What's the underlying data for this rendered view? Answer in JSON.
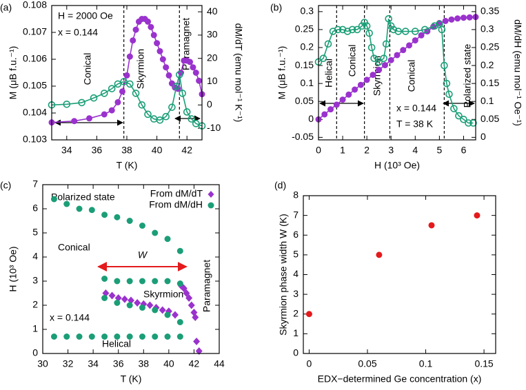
{
  "chart_data": [
    {
      "type": "line",
      "panel_label": "(a)",
      "xlabel": "T (K)",
      "ylabel": "M (μB f.u.⁻¹)",
      "y2label": "dM/dT (emu mol⁻¹ K⁻¹)",
      "xlim": [
        33,
        43
      ],
      "xticks": [
        34,
        36,
        38,
        40,
        42
      ],
      "ylim": [
        0.103,
        0.108
      ],
      "yticks": [
        0.103,
        0.104,
        0.105,
        0.106,
        0.107,
        0.108
      ],
      "y2lim": [
        -15,
        42.7
      ],
      "y2ticks": [
        -10,
        0,
        10,
        20,
        30,
        40
      ],
      "vlines": [
        37.8,
        41.5
      ],
      "annotations": [
        "H = 2000 Oe",
        "x = 0.144",
        "Conical",
        "Skyrmion",
        "Paramagnet"
      ],
      "series": [
        {
          "color": "#9a32cd",
          "marker": "circle",
          "x": [
            33,
            34.5,
            35.5,
            36.5,
            37,
            37.4,
            37.7,
            38,
            38.2,
            38.4,
            38.6,
            38.8,
            39,
            39.2,
            39.4,
            39.6,
            39.8,
            40,
            40.2,
            40.4,
            40.6,
            40.8,
            41,
            41.2,
            41.4,
            41.6,
            41.8,
            42,
            42.2,
            42.4,
            42.6,
            42.8,
            43
          ],
          "values": [
            0.10365,
            0.1037,
            0.1038,
            0.10395,
            0.1041,
            0.1044,
            0.1048,
            0.1054,
            0.1061,
            0.1067,
            0.1071,
            0.1074,
            0.1075,
            0.1075,
            0.1074,
            0.1072,
            0.1069,
            0.1066,
            0.1063,
            0.106,
            0.1057,
            0.1054,
            0.1051,
            0.10495,
            0.1049,
            0.1055,
            0.10595,
            0.10595,
            0.1059,
            0.1057,
            0.1055,
            0.1052,
            0.1047
          ]
        },
        {
          "color": "#1b9e77",
          "marker": "circle-open",
          "axis": "y2",
          "x": [
            33,
            34,
            35,
            35.8,
            36.5,
            37,
            37.4,
            37.8,
            38.2,
            38.6,
            39,
            39.4,
            39.8,
            40.2,
            40.6,
            41,
            41.3,
            41.5,
            41.7,
            42,
            42.3,
            42.6,
            43
          ],
          "values": [
            0,
            0.3,
            1,
            3,
            5,
            7,
            9,
            10,
            9,
            5,
            0,
            -4,
            -6,
            -6.5,
            -5,
            -1,
            8,
            13,
            5,
            -3,
            -6,
            -8,
            -9
          ]
        }
      ]
    },
    {
      "type": "line",
      "panel_label": "(b)",
      "xlabel": "H (10³ Oe)",
      "ylabel": "M (μB f.u.⁻¹)",
      "y2label": "dM/dH (emu mol⁻¹ Oe⁻¹)",
      "xlim": [
        0,
        6.5
      ],
      "xticks": [
        0,
        1,
        2,
        3,
        4,
        5,
        6
      ],
      "ylim": [
        -0.057,
        0.317
      ],
      "yticks": [
        -0.05,
        0,
        0.05,
        0.1,
        0.15,
        0.2,
        0.25,
        0.3
      ],
      "y2lim": [
        -0.007,
        0.367
      ],
      "y2ticks": [
        0,
        0.05,
        0.1,
        0.15,
        0.2,
        0.25,
        0.3,
        0.35
      ],
      "vlines": [
        0.75,
        1.9,
        2.95,
        5.2
      ],
      "annotations": [
        "Helical",
        "Conical",
        "Skyrmion",
        "Conical",
        "Polarized state",
        "x = 0.144",
        "T = 38 K"
      ],
      "series": [
        {
          "color": "#9a32cd",
          "marker": "circle",
          "x": [
            0,
            0.25,
            0.5,
            0.75,
            1,
            1.25,
            1.5,
            1.75,
            2,
            2.25,
            2.5,
            2.75,
            3,
            3.25,
            3.5,
            3.75,
            4,
            4.25,
            4.5,
            4.75,
            5,
            5.25,
            5.5,
            5.75,
            6,
            6.25,
            6.5
          ],
          "values": [
            0,
            0.014,
            0.028,
            0.041,
            0.055,
            0.069,
            0.083,
            0.096,
            0.11,
            0.124,
            0.138,
            0.151,
            0.165,
            0.179,
            0.193,
            0.206,
            0.22,
            0.234,
            0.245,
            0.258,
            0.268,
            0.274,
            0.278,
            0.281,
            0.283,
            0.284,
            0.285
          ]
        },
        {
          "color": "#1b9e77",
          "marker": "circle-open",
          "axis": "y2",
          "x": [
            0,
            0.2,
            0.4,
            0.6,
            0.8,
            1.0,
            1.2,
            1.4,
            1.6,
            1.8,
            1.9,
            2.0,
            2.1,
            2.2,
            2.3,
            2.5,
            2.7,
            2.8,
            2.9,
            3.0,
            3.1,
            3.3,
            3.6,
            4.0,
            4.4,
            4.8,
            5.0,
            5.1,
            5.2,
            5.3,
            5.4,
            5.6,
            5.8,
            6.0,
            6.2,
            6.4
          ],
          "values": [
            0.21,
            0.22,
            0.26,
            0.295,
            0.3,
            0.3,
            0.295,
            0.3,
            0.3,
            0.31,
            0.32,
            0.31,
            0.29,
            0.25,
            0.22,
            0.21,
            0.22,
            0.26,
            0.33,
            0.31,
            0.3,
            0.295,
            0.295,
            0.295,
            0.3,
            0.31,
            0.315,
            0.3,
            0.2,
            0.15,
            0.12,
            0.08,
            0.06,
            0.05,
            0.04,
            0.04
          ]
        }
      ]
    },
    {
      "type": "scatter",
      "panel_label": "(c)",
      "xlabel": "T (K)",
      "ylabel": "H (10³ Oe)",
      "xlim": [
        30,
        44
      ],
      "xticks": [
        30,
        32,
        34,
        36,
        38,
        40,
        42,
        44
      ],
      "ylim": [
        0,
        7
      ],
      "yticks": [
        0,
        1,
        2,
        3,
        4,
        5,
        6,
        7
      ],
      "legend": "upper right",
      "annotations": [
        "Polarized state",
        "Conical",
        "Skyrmion",
        "Paramagnet",
        "x = 0.144",
        "Helical"
      ],
      "w_arrow": {
        "label": "W",
        "color": "#e41a1c",
        "x": [
          34.4,
          41.4
        ],
        "y": 3.6
      },
      "series": [
        {
          "name": "From dM/dT",
          "color": "#9a32cd",
          "marker": "diamond",
          "x": [
            35,
            35.5,
            36,
            36.5,
            37,
            37.5,
            38,
            38.5,
            39,
            39.5,
            40,
            40.5,
            41,
            41.2,
            41.4,
            41.6,
            41.8,
            42,
            42.1,
            42.2,
            42.4
          ],
          "values": [
            2.5,
            2.4,
            2.3,
            2.25,
            2.2,
            2.1,
            2.05,
            2.0,
            1.9,
            1.8,
            1.75,
            1.6,
            2.8,
            2.7,
            2.5,
            2.3,
            2.0,
            1.7,
            1.5,
            0.5,
            0.1
          ]
        },
        {
          "name": "From dM/dH",
          "color": "#1b9e77",
          "marker": "circle",
          "x": [
            30.9,
            31.9,
            32.9,
            33.9,
            34.9,
            35.9,
            36.9,
            37.9,
            38.9,
            39.9,
            40.9,
            34.9,
            35.9,
            36.9,
            37.9,
            38.9,
            39.9,
            40.9,
            34.9,
            35.9,
            36.9,
            37.9,
            38.9,
            39.9,
            40.9,
            30.9,
            31.9,
            32.9,
            33.9,
            34.9,
            35.9,
            36.9,
            37.9,
            38.9,
            39.9,
            40.9
          ],
          "values": [
            6.4,
            6.2,
            6.0,
            5.95,
            5.75,
            5.65,
            5.5,
            5.3,
            5.0,
            4.75,
            4.25,
            3.1,
            3.0,
            3.0,
            3.0,
            3.0,
            3.0,
            2.9,
            2.3,
            2.1,
            2.0,
            1.9,
            1.8,
            1.6,
            1.3,
            0.7,
            0.7,
            0.7,
            0.7,
            0.7,
            0.7,
            0.7,
            0.7,
            0.7,
            0.7,
            0.7
          ]
        }
      ]
    },
    {
      "type": "scatter",
      "panel_label": "(d)",
      "xlabel": "EDX−determined Ge concentration (x)",
      "ylabel": "Skyrmion phase width W (K)",
      "xlim": [
        -0.005,
        0.16
      ],
      "xticks": [
        0,
        0.05,
        0.1,
        0.15
      ],
      "ylim": [
        0,
        8
      ],
      "yticks": [
        0,
        1,
        2,
        3,
        4,
        5,
        6,
        7,
        8
      ],
      "series": [
        {
          "color": "#e41a1c",
          "marker": "circle",
          "x": [
            0,
            0.06,
            0.105,
            0.144
          ],
          "values": [
            2,
            5,
            6.5,
            7
          ]
        }
      ]
    }
  ]
}
